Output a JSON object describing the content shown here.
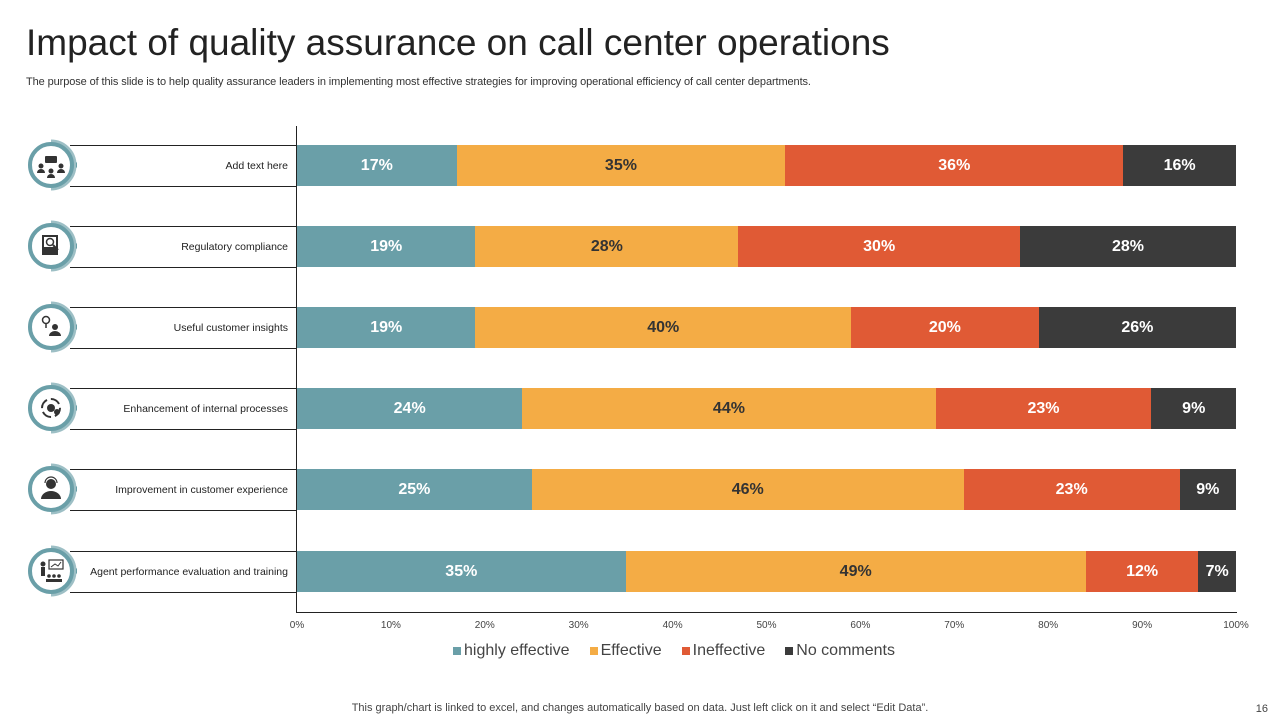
{
  "title": "Impact of quality assurance on call center operations",
  "subtitle": "The purpose of this slide is to help quality assurance leaders in implementing most effective strategies for improving operational efficiency of call center departments.",
  "footer": "This graph/chart is linked to excel,  and changes automatically based on data. Just left click on it and select “Edit Data”.",
  "page_number": "16",
  "icons": [
    "team-meeting-icon",
    "document-search-icon",
    "idea-person-icon",
    "gear-cycle-icon",
    "customer-person-icon",
    "presentation-training-icon"
  ],
  "chart_data": {
    "type": "bar",
    "orientation": "horizontal",
    "stacked": true,
    "categories": [
      "Add text here",
      "Regulatory compliance",
      "Useful customer insights",
      "Enhancement of internal processes",
      "Improvement in customer experience",
      "Agent performance evaluation and training"
    ],
    "series": [
      {
        "name": "highly effective",
        "color": "#6A9FA8",
        "values": [
          17,
          19,
          19,
          24,
          25,
          35
        ]
      },
      {
        "name": "Effective",
        "color": "#F4AC45",
        "values": [
          35,
          28,
          40,
          44,
          46,
          49
        ]
      },
      {
        "name": "Ineffective",
        "color": "#E05A35",
        "values": [
          36,
          30,
          20,
          23,
          23,
          12
        ]
      },
      {
        "name": "No comments",
        "color": "#3B3B3B",
        "values": [
          16,
          28,
          26,
          9,
          9,
          7
        ]
      }
    ],
    "data_labels": [
      [
        "17%",
        "35%",
        "36%",
        "16%"
      ],
      [
        "19%",
        "28%",
        "30%",
        "28%"
      ],
      [
        "19%",
        "40%",
        "20%",
        "26%"
      ],
      [
        "24%",
        "44%",
        "23%",
        "9%"
      ],
      [
        "25%",
        "46%",
        "23%",
        "9%"
      ],
      [
        "35%",
        "49%",
        "12%",
        "7%"
      ]
    ],
    "xlim": [
      0,
      100
    ],
    "xticks": [
      "0%",
      "10%",
      "20%",
      "30%",
      "40%",
      "50%",
      "60%",
      "70%",
      "80%",
      "90%",
      "100%"
    ],
    "legend": "bottom",
    "grid": false
  }
}
